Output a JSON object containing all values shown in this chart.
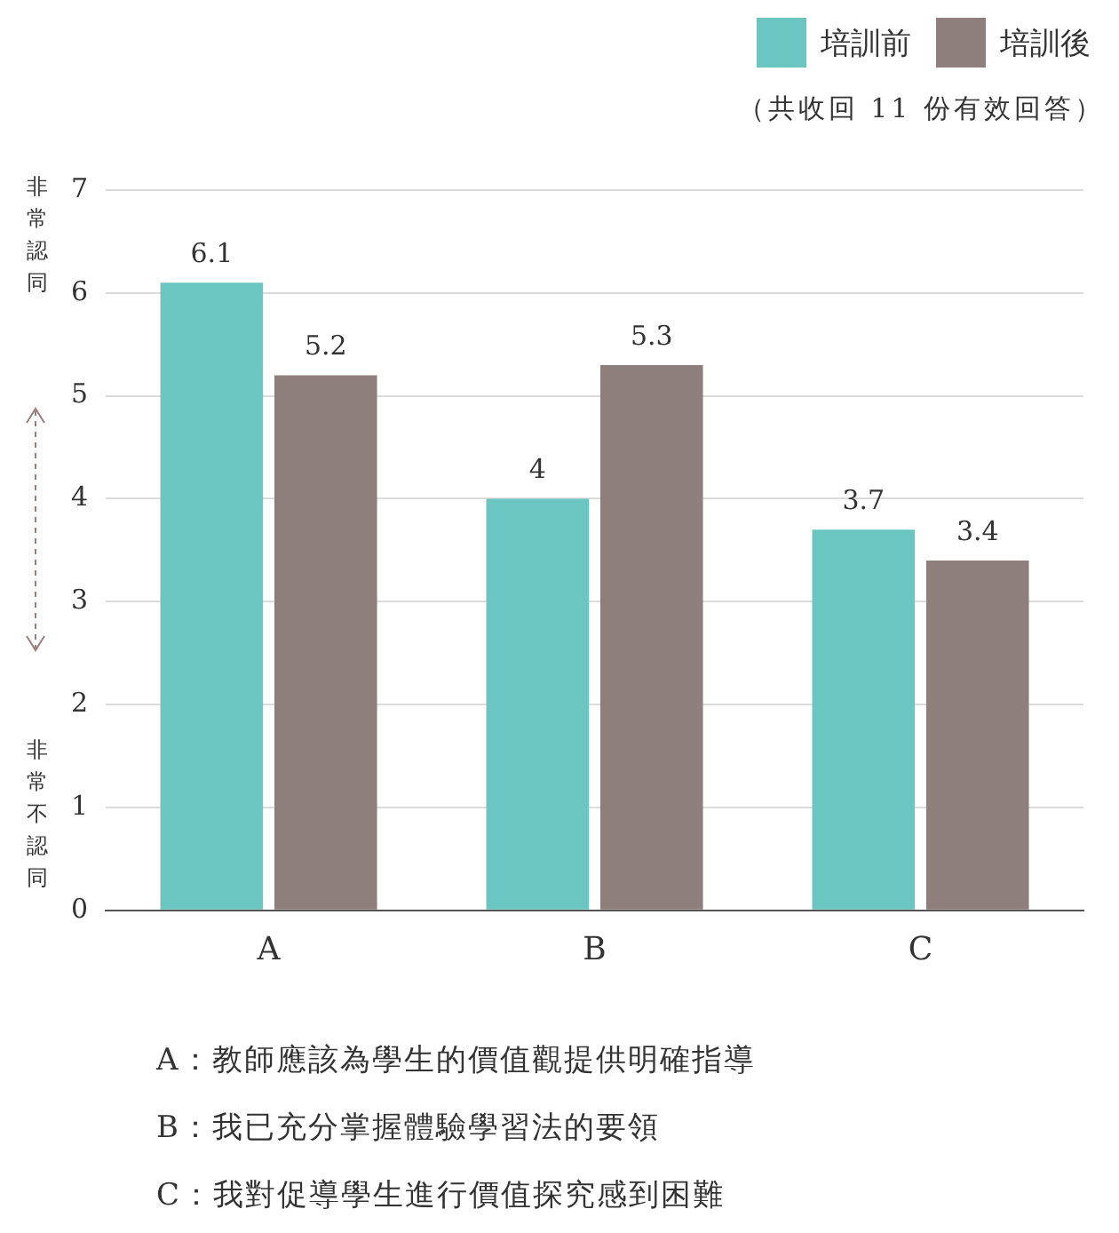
{
  "chart_data": {
    "type": "bar",
    "subtitle": "（共收回 11 份有效回答）",
    "categories": [
      "A",
      "B",
      "C"
    ],
    "series": [
      {
        "name": "培訓前",
        "color": "#6bc6c1",
        "values": [
          6.1,
          4,
          3.7
        ]
      },
      {
        "name": "培訓後",
        "color": "#8f7f7c",
        "values": [
          5.2,
          5.3,
          3.4
        ]
      }
    ],
    "ylim": [
      0,
      7
    ],
    "yticks": [
      0,
      1,
      2,
      3,
      4,
      5,
      6,
      7
    ],
    "grid": "y",
    "legend": "top right",
    "data_labels": true,
    "annotations": [
      "非常認同",
      "非常不認同",
      "A：教師應該為學生的價值觀提供明確指導",
      "B：我已充分掌握體驗學習法的要領",
      "C：我對促導學生進行價值探究感到困難"
    ]
  }
}
